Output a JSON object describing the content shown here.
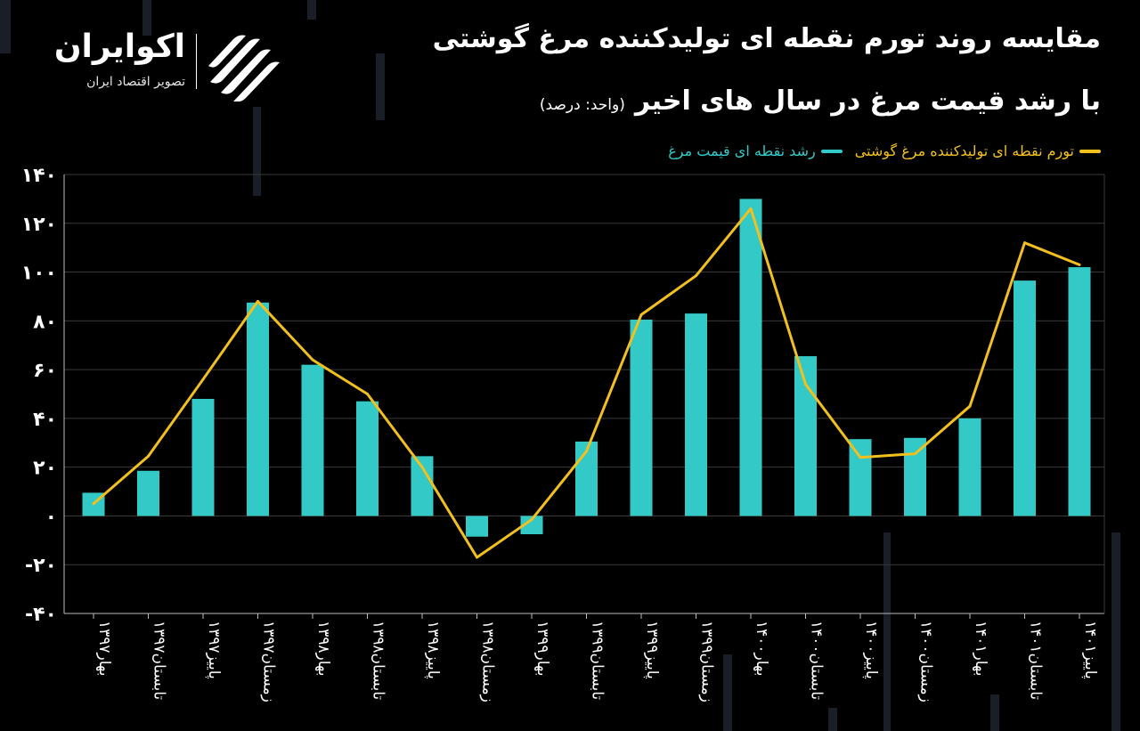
{
  "brand": {
    "name": "اکوایران",
    "tagline": "تصویر اقتصاد ایران"
  },
  "chart_data": {
    "type": "bar",
    "title": "مقایسه روند تورم نقطه ای تولیدکننده مرغ گوشتی",
    "subtitle": "با رشد قیمت مرغ در سال های اخیر",
    "unit_note": "(واحد: درصد)",
    "xlabel": "",
    "ylabel": "",
    "ylim": [
      -40,
      140
    ],
    "yticks": [
      140,
      120,
      100,
      80,
      60,
      40,
      20,
      0,
      -20,
      -40
    ],
    "ytick_labels": [
      "۱۴۰",
      "۱۲۰",
      "۱۰۰",
      "۸۰",
      "۶۰",
      "۴۰",
      "۲۰",
      "۰",
      "-۲۰",
      "-۴۰"
    ],
    "grid": true,
    "legend_position": "top-right",
    "categories": [
      "بهار۱۳۹۷",
      "تابستان۱۳۹۷",
      "پاییز۱۳۹۷",
      "زمستان۱۳۹۷",
      "بهار۱۳۹۸",
      "تابستان۱۳۹۸",
      "پاییز۱۳۹۸",
      "زمستان۱۳۹۸",
      "بهار۱۳۹۹",
      "تابستان۱۳۹۹",
      "پاییز۱۳۹۹",
      "زمستان۱۳۹۹",
      "بهار۱۴۰۰",
      "تابستان۱۴۰۰",
      "پاییز۱۴۰۰",
      "زمستان۱۴۰۰",
      "بهار۱۴۰۱",
      "تابستان۱۴۰۱",
      "پاییز۱۴۰۱"
    ],
    "series": [
      {
        "name": "رشد نقطه ای قیمت مرغ",
        "kind": "bar",
        "color": "#33c9c6",
        "values": [
          9.5,
          18.5,
          48,
          87.5,
          62,
          47,
          24.5,
          -8.5,
          -7.5,
          30.5,
          80.5,
          83,
          130,
          65.5,
          31.5,
          32,
          40,
          96.5,
          102
        ]
      },
      {
        "name": "تورم نقطه ای تولیدکننده مرغ گوشتی",
        "kind": "line",
        "color": "#f2c01e",
        "values": [
          5,
          24.5,
          56,
          88,
          64,
          50,
          20,
          -17,
          -1.5,
          26.5,
          82.5,
          98.5,
          126,
          54,
          24,
          25.5,
          45,
          112,
          103
        ]
      }
    ]
  }
}
